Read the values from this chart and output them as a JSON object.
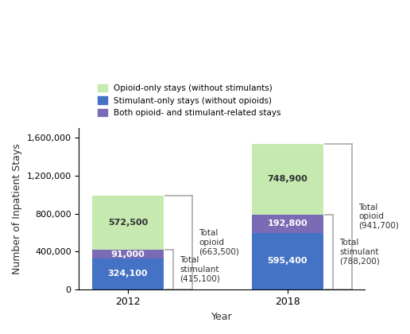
{
  "years": [
    "2012",
    "2018"
  ],
  "stimulant_only": [
    324100,
    595400
  ],
  "both_opioid_stimulant": [
    91000,
    192800
  ],
  "opioid_only": [
    572500,
    748900
  ],
  "colors": {
    "opioid_only": "#c6e9b0",
    "stimulant_only": "#4472c4",
    "both": "#7b6bb5"
  },
  "bar_width": 0.45,
  "ylabel": "Number of Inpatient Stays",
  "xlabel": "Year",
  "ylim": [
    0,
    1700000
  ],
  "yticks": [
    0,
    400000,
    800000,
    1200000,
    1600000
  ],
  "ytick_labels": [
    "0",
    "400,000",
    "800,000",
    "1,200,000",
    "1,600,000"
  ],
  "legend_labels": [
    "Opioid-only stays (without stimulants)",
    "Stimulant-only stays (without opioids)",
    "Both opioid- and stimulant-related stays"
  ],
  "annotations_2012": {
    "stimulant_label": "324,100",
    "both_label": "91,000",
    "opioid_label": "572,500",
    "total_opioid": "Total\nopioid\n(663,500)",
    "total_stimulant": "Total\nstimulant\n(415,100)",
    "total_opioid_val": 663500,
    "total_stimulant_val": 415100
  },
  "annotations_2018": {
    "stimulant_label": "595,400",
    "both_label": "192,800",
    "opioid_label": "748,900",
    "total_opioid": "Total\nopioid\n(941,700)",
    "total_stimulant": "Total\nstimulant\n(788,200)",
    "total_opioid_val": 941700,
    "total_stimulant_val": 788200
  },
  "background_color": "#ffffff",
  "text_color": "#2f2f2f",
  "bar_positions": [
    0,
    1
  ]
}
